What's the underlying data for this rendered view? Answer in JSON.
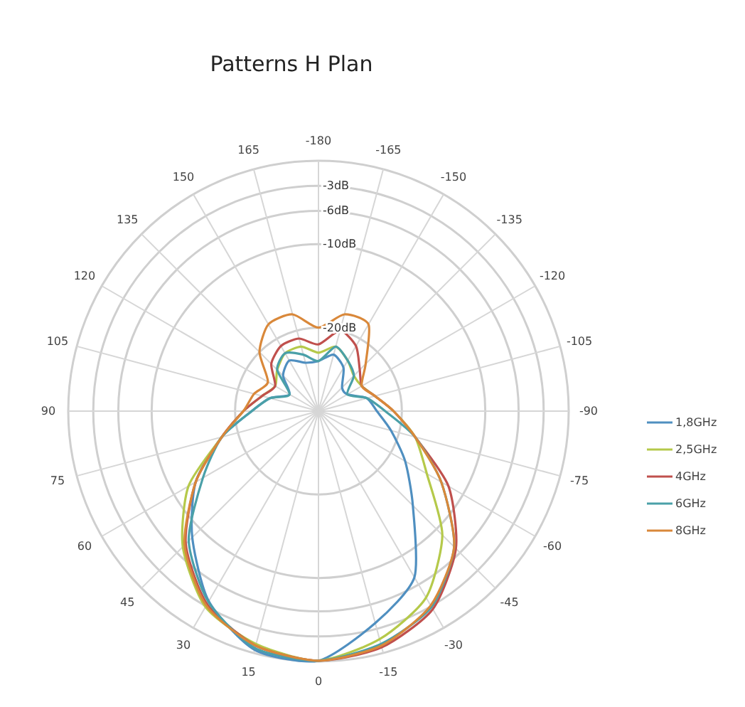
{
  "chart_data": {
    "type": "radar",
    "title": "Patterns H Plan",
    "categories": [
      "-180",
      "-165",
      "-150",
      "-135",
      "-120",
      "-105",
      "-90",
      "-75",
      "-60",
      "-45",
      "-30",
      "-15",
      "0",
      "15",
      "30",
      "45",
      "60",
      "75",
      "90",
      "105",
      "120",
      "135",
      "150",
      "165"
    ],
    "ylim": [
      -30,
      0
    ],
    "yticks": [
      {
        "value": -20,
        "label": "-20dB"
      },
      {
        "value": -10,
        "label": "-10dB"
      },
      {
        "value": -6,
        "label": "-6dB"
      },
      {
        "value": -3,
        "label": "-3dB"
      }
    ],
    "grid": true,
    "legend": "right",
    "series": [
      {
        "name": "1,8GHz",
        "color": "#4f8fc0",
        "values": [
          -24,
          -23,
          -24,
          -26,
          -26,
          -24,
          -23,
          -21,
          -18,
          -14,
          -7,
          -3.7,
          -0.1,
          -0.4,
          -3.7,
          -8.6,
          -13,
          -18,
          -22,
          -24,
          -26,
          -24,
          -23,
          -24
        ]
      },
      {
        "name": "2,5GHz",
        "color": "#b5c94a",
        "values": [
          -23,
          -22,
          -23,
          -24,
          -24,
          -23,
          -21,
          -18,
          -15,
          -9,
          -4.2,
          -1.7,
          -0.1,
          -1.1,
          -2.9,
          -7,
          -12,
          -18,
          -21,
          -23,
          -24,
          -23,
          -22,
          -22
        ]
      },
      {
        "name": "4GHz",
        "color": "#c0504d",
        "values": [
          -22,
          -20,
          -21,
          -23,
          -24,
          -23,
          -21,
          -18,
          -12,
          -6.7,
          -2.6,
          -0.7,
          -0.1,
          -0.9,
          -3.3,
          -7.5,
          -13,
          -18,
          -21,
          -23,
          -24,
          -22,
          -21,
          -21
        ]
      },
      {
        "name": "6GHz",
        "color": "#4aa0a8",
        "values": [
          -24,
          -22,
          -23,
          -24,
          -26,
          -24,
          -22,
          -18,
          -13,
          -7,
          -2.9,
          -1.1,
          -0.1,
          -0.6,
          -3.6,
          -8,
          -14,
          -18,
          -22,
          -24,
          -26,
          -23,
          -22,
          -23
        ]
      },
      {
        "name": "8GHz",
        "color": "#d9883a",
        "values": [
          -20,
          -18,
          -18,
          -22,
          -24,
          -23,
          -21,
          -18,
          -13,
          -7,
          -3.1,
          -0.9,
          -0.1,
          -0.9,
          -3.1,
          -7.3,
          -13,
          -18,
          -21,
          -22,
          -23,
          -20,
          -18,
          -18
        ]
      }
    ]
  }
}
